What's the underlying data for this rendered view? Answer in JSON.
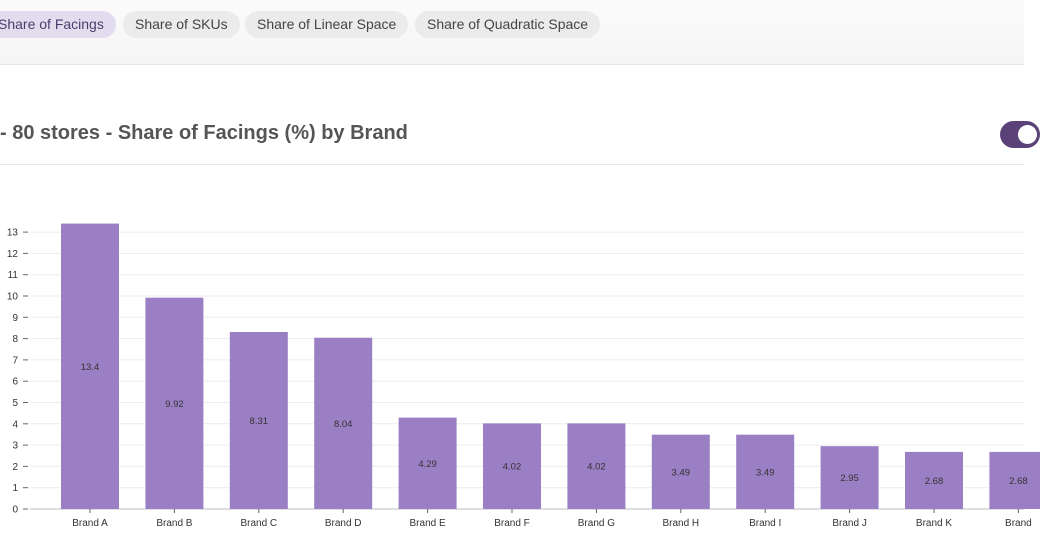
{
  "tabs": [
    {
      "label": "Share of Facings",
      "active": true
    },
    {
      "label": "Share of SKUs",
      "active": false
    },
    {
      "label": "Share of Linear Space",
      "active": false
    },
    {
      "label": "Share of Quadratic Space",
      "active": false
    }
  ],
  "header": {
    "title": "- 80 stores - Share of Facings (%) by Brand"
  },
  "colors": {
    "bar": "#9b7fc4",
    "toggle": "#5a4278",
    "active_tab": "#e3dcef"
  },
  "chart_data": {
    "type": "bar",
    "title": "- 80 stores - Share of Facings (%) by Brand",
    "categories": [
      "Brand A",
      "Brand B",
      "Brand C",
      "Brand D",
      "Brand E",
      "Brand F",
      "Brand G",
      "Brand H",
      "Brand I",
      "Brand J",
      "Brand K",
      "Brand"
    ],
    "values": [
      13.4,
      9.92,
      8.31,
      8.04,
      4.29,
      4.02,
      4.02,
      3.49,
      3.49,
      2.95,
      2.68,
      2.68
    ],
    "value_labels": [
      "13.4",
      "9.92",
      "8.31",
      "8.04",
      "4.29",
      "4.02",
      "4.02",
      "3.49",
      "3.49",
      "2.95",
      "2.68",
      "2.68"
    ],
    "yticks": [
      "0",
      "1",
      "2",
      "3",
      "4",
      "5",
      "6",
      "7",
      "8",
      "9",
      "10",
      "11",
      "12",
      "13"
    ],
    "ylim": [
      0,
      13.6
    ],
    "grid": true,
    "xlabel": "",
    "ylabel": ""
  }
}
